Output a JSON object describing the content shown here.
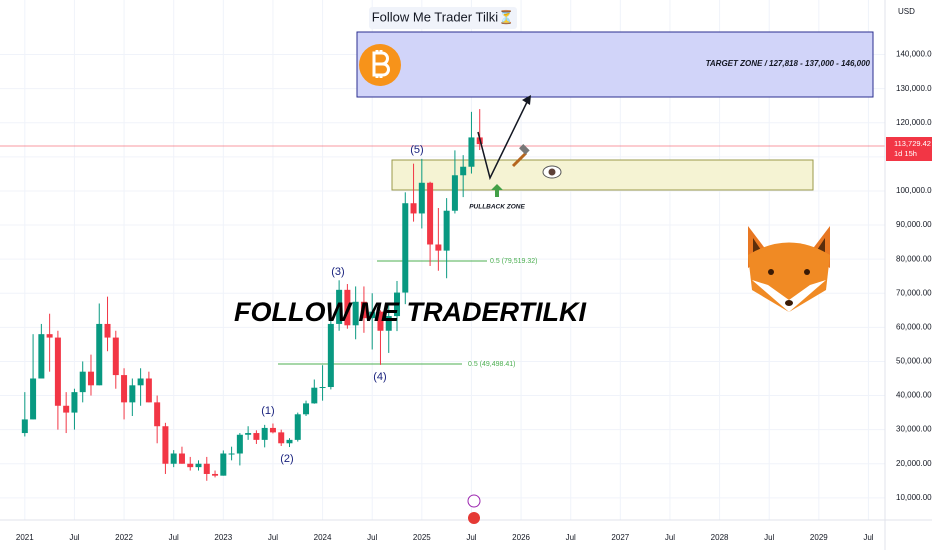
{
  "chart_data": {
    "type": "candlestick",
    "title": "Follow Me Trader Tilki⏳",
    "watermark": "FOLLOW ME TRADERTILKI",
    "currency": "USD",
    "target_zone_label": "TARGET ZONE / 127,818 - 137,000 - 146,000",
    "pullback_zone_label": "PULLBACK ZONE",
    "fib_labels": [
      "0.5 (79,519.32)",
      "0.5 (49,498.41)"
    ],
    "wave_labels": [
      "(1)",
      "(2)",
      "(3)",
      "(4)",
      "(5)"
    ],
    "last_price_label": "113,729.42",
    "countdown": "1d 15h",
    "up_color": "#089981",
    "down_color": "#f23645",
    "grid": true,
    "x": [
      "2021-01",
      "2021-02",
      "2021-03",
      "2021-04",
      "2021-05",
      "2021-06",
      "2021-07",
      "2021-08",
      "2021-09",
      "2021-10",
      "2021-11",
      "2021-12",
      "2022-01",
      "2022-02",
      "2022-03",
      "2022-04",
      "2022-05",
      "2022-06",
      "2022-07",
      "2022-08",
      "2022-09",
      "2022-10",
      "2022-11",
      "2022-12",
      "2023-01",
      "2023-02",
      "2023-03",
      "2023-04",
      "2023-05",
      "2023-06",
      "2023-07",
      "2023-08",
      "2023-09",
      "2023-10",
      "2023-11",
      "2023-12",
      "2024-01",
      "2024-02",
      "2024-03",
      "2024-04",
      "2024-05",
      "2024-06",
      "2024-07",
      "2024-08",
      "2024-09",
      "2024-10",
      "2024-11",
      "2024-12",
      "2025-01",
      "2025-02",
      "2025-03",
      "2025-04",
      "2025-05",
      "2025-06",
      "2025-07",
      "2025-08"
    ],
    "open": [
      29000,
      33000,
      45000,
      58000,
      57000,
      37000,
      35000,
      41000,
      47000,
      43000,
      61000,
      57000,
      46000,
      38000,
      43000,
      45000,
      38000,
      31000,
      20000,
      23000,
      20000,
      19000,
      20000,
      17000,
      16500,
      23000,
      23000,
      28500,
      29000,
      27000,
      30500,
      29200,
      26000,
      27000,
      34500,
      37700,
      42300,
      42500,
      61000,
      71000,
      60600,
      67500,
      62700,
      64600,
      59000,
      63300,
      70200,
      96400,
      93400,
      102400,
      84300,
      82500,
      94200,
      104600,
      107100,
      115700
    ],
    "high": [
      41000,
      58000,
      61000,
      64000,
      59000,
      41000,
      42000,
      50000,
      52000,
      67000,
      69000,
      59000,
      48000,
      45000,
      48000,
      47000,
      40000,
      32000,
      24000,
      25000,
      22000,
      21000,
      22000,
      18000,
      23900,
      25000,
      29000,
      31000,
      29800,
      31400,
      31800,
      30000,
      27500,
      35000,
      38500,
      44700,
      48900,
      64000,
      73800,
      72700,
      72000,
      72000,
      70000,
      65000,
      66500,
      73600,
      99600,
      108000,
      109400,
      102700,
      95000,
      97900,
      111900,
      110500,
      123200,
      124000
    ],
    "low": [
      28000,
      33000,
      45000,
      47000,
      30000,
      29000,
      30000,
      38000,
      40000,
      43000,
      53000,
      42000,
      33000,
      34000,
      37000,
      38000,
      26000,
      17000,
      19000,
      20000,
      18000,
      18000,
      15000,
      16000,
      16500,
      21000,
      19500,
      27000,
      25800,
      24800,
      28900,
      25200,
      24900,
      26500,
      34000,
      37600,
      38500,
      41800,
      59000,
      59600,
      56500,
      58400,
      53500,
      49000,
      52500,
      58900,
      66800,
      91000,
      89000,
      78000,
      76600,
      74400,
      93400,
      98200,
      105100,
      112000
    ],
    "close": [
      33000,
      45000,
      58000,
      57000,
      37000,
      35000,
      41000,
      47000,
      43000,
      61000,
      57000,
      46000,
      38000,
      43000,
      45000,
      38000,
      31000,
      20000,
      23000,
      20000,
      19000,
      20000,
      17000,
      16500,
      23000,
      23000,
      28500,
      29000,
      27000,
      30500,
      29200,
      26000,
      27000,
      34500,
      37700,
      42300,
      42500,
      61000,
      71000,
      60600,
      67500,
      62700,
      64600,
      59000,
      63300,
      70200,
      96400,
      93400,
      102400,
      84300,
      82500,
      94200,
      104600,
      107100,
      115700,
      113729.42
    ],
    "xlim": [
      "2020-10",
      "2029-09"
    ],
    "xticks": [
      {
        "value": "2021-01",
        "label": "2021"
      },
      {
        "value": "2021-07",
        "label": "Jul"
      },
      {
        "value": "2022-01",
        "label": "2022"
      },
      {
        "value": "2022-07",
        "label": "Jul"
      },
      {
        "value": "2023-01",
        "label": "2023"
      },
      {
        "value": "2023-07",
        "label": "Jul"
      },
      {
        "value": "2024-01",
        "label": "2024"
      },
      {
        "value": "2024-07",
        "label": "Jul"
      },
      {
        "value": "2025-01",
        "label": "2025"
      },
      {
        "value": "2025-07",
        "label": "Jul"
      },
      {
        "value": "2026-01",
        "label": "2026"
      },
      {
        "value": "2026-07",
        "label": "Jul"
      },
      {
        "value": "2027-01",
        "label": "2027"
      },
      {
        "value": "2027-07",
        "label": "Jul"
      },
      {
        "value": "2028-01",
        "label": "2028"
      },
      {
        "value": "2028-07",
        "label": "Jul"
      },
      {
        "value": "2029-01",
        "label": "2029"
      },
      {
        "value": "2029-07",
        "label": "Jul"
      }
    ],
    "ylim": [
      3500,
      156000
    ],
    "yticks": [
      {
        "value": 10000,
        "label": "10,000.00"
      },
      {
        "value": 20000,
        "label": "20,000.00"
      },
      {
        "value": 30000,
        "label": "30,000.00"
      },
      {
        "value": 40000,
        "label": "40,000.00"
      },
      {
        "value": 50000,
        "label": "50,000.00"
      },
      {
        "value": 60000,
        "label": "60,000.00"
      },
      {
        "value": 70000,
        "label": "70,000.00"
      },
      {
        "value": 80000,
        "label": "80,000.00"
      },
      {
        "value": 90000,
        "label": "90,000.00"
      },
      {
        "value": 100000,
        "label": "100,000.00"
      },
      {
        "value": 110000,
        "label": "110,000.00"
      },
      {
        "value": 120000,
        "label": "120,000.00"
      },
      {
        "value": 130000,
        "label": "130,000.00"
      },
      {
        "value": 140000,
        "label": "140,000.00"
      }
    ]
  }
}
